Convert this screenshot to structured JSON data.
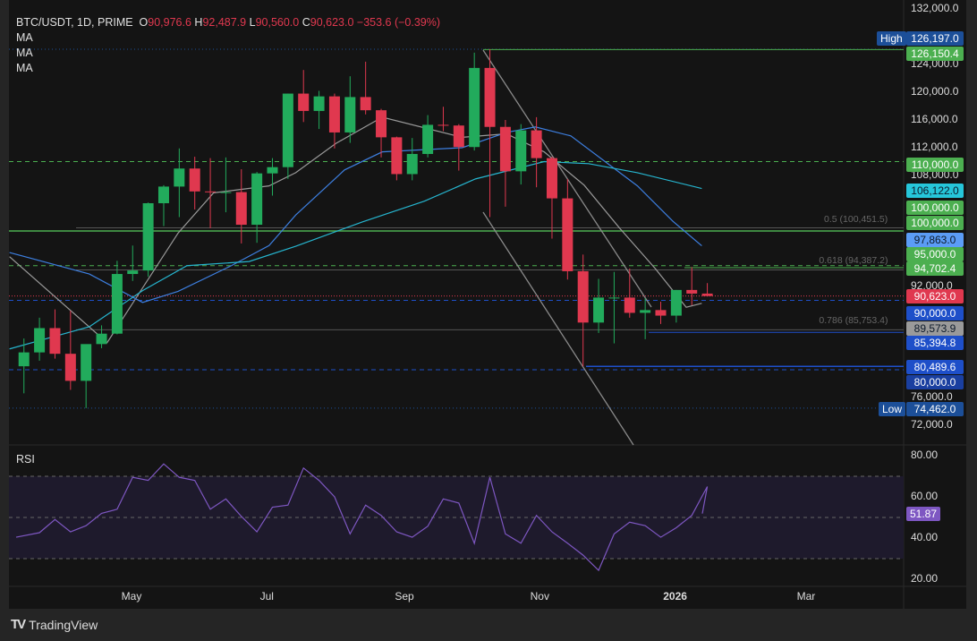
{
  "header": {
    "symbol": "BTC/USDT, 1D, PRIME",
    "o_label": "O",
    "o": "90,976.6",
    "h_label": "H",
    "h": "92,487.9",
    "l_label": "L",
    "l": "90,560.0",
    "c_label": "C",
    "c": "90,623.0",
    "change": "−353.6 (−0.39%)",
    "indicators": [
      "MA",
      "MA",
      "MA"
    ]
  },
  "colors": {
    "up": "#22ab5c",
    "down": "#e0384f",
    "ma_fast": "#9a9a9a",
    "ma_mid": "#3d7fe0",
    "ma_slow": "#26b5cf",
    "rsi": "#7e57c2",
    "green_level": "#4caf50",
    "blue_level": "#1e4fc9"
  },
  "chart_data": {
    "type": "candlestick",
    "interval_shown": "1D",
    "y_axis": {
      "range": [
        68000,
        134000
      ],
      "ticks": [
        "132,000.0",
        "124,000.0",
        "120,000.0",
        "116,000.0",
        "112,000.0",
        "108,000.0",
        "92,000.0",
        "76,000.0",
        "72,000.0"
      ],
      "tick_values": [
        132000,
        124000,
        120000,
        116000,
        112000,
        108000,
        92000,
        76000,
        72000
      ]
    },
    "x_axis": {
      "ticks": [
        "May",
        "Jul",
        "Sep",
        "Nov",
        "2026",
        "Mar"
      ],
      "tick_dates": [
        "2025-05-01",
        "2025-07-01",
        "2025-09-01",
        "2025-11-01",
        "2026-01-01",
        "2026-03-01"
      ]
    },
    "candles_columns": [
      "week",
      "open",
      "high",
      "low",
      "close"
    ],
    "candles": [
      [
        "2025-03-10",
        80500,
        84500,
        76600,
        82500
      ],
      [
        "2025-03-17",
        82500,
        87500,
        81300,
        86000
      ],
      [
        "2025-03-24",
        86000,
        88700,
        81600,
        82300
      ],
      [
        "2025-03-31",
        82300,
        88500,
        77100,
        78400
      ],
      [
        "2025-04-07",
        78400,
        83500,
        74462,
        83700
      ],
      [
        "2025-04-14",
        83700,
        86400,
        83100,
        85200
      ],
      [
        "2025-04-21",
        85200,
        95700,
        85100,
        93800
      ],
      [
        "2025-04-28",
        93800,
        97900,
        92800,
        94300
      ],
      [
        "2025-05-05",
        94300,
        104100,
        93400,
        104000
      ],
      [
        "2025-05-12",
        104000,
        106600,
        100700,
        106400
      ],
      [
        "2025-05-19",
        106400,
        111900,
        102000,
        109000
      ],
      [
        "2025-05-26",
        109000,
        110700,
        103100,
        105700
      ],
      [
        "2025-06-02",
        105700,
        110500,
        100400,
        105600
      ],
      [
        "2025-06-09",
        105600,
        110600,
        102700,
        105600
      ],
      [
        "2025-06-16",
        105600,
        108900,
        98200,
        100900
      ],
      [
        "2025-06-23",
        100900,
        108500,
        98300,
        108300
      ],
      [
        "2025-06-30",
        108300,
        110500,
        105100,
        109200
      ],
      [
        "2025-07-07",
        109200,
        119800,
        107500,
        119800
      ],
      [
        "2025-07-14",
        119800,
        123200,
        115700,
        117300
      ],
      [
        "2025-07-21",
        117300,
        120200,
        114700,
        119400
      ],
      [
        "2025-07-28",
        119400,
        119800,
        111900,
        114200
      ],
      [
        "2025-08-04",
        114200,
        122300,
        112700,
        119300
      ],
      [
        "2025-08-11",
        119300,
        124400,
        116800,
        117400
      ],
      [
        "2025-08-18",
        117400,
        117600,
        110600,
        113500
      ],
      [
        "2025-08-25",
        113500,
        113600,
        107300,
        108200
      ],
      [
        "2025-09-01",
        108200,
        113400,
        107300,
        111100
      ],
      [
        "2025-09-08",
        111100,
        116700,
        110600,
        115300
      ],
      [
        "2025-09-15",
        115300,
        117900,
        114400,
        115200
      ],
      [
        "2025-09-22",
        115200,
        115400,
        108700,
        112100
      ],
      [
        "2025-09-29",
        112100,
        125700,
        111600,
        123500
      ],
      [
        "2025-10-06",
        123500,
        126197,
        102000,
        115000
      ],
      [
        "2025-10-13",
        115000,
        116000,
        103500,
        108600
      ],
      [
        "2025-10-20",
        108600,
        115400,
        106700,
        114500
      ],
      [
        "2025-10-27",
        114500,
        116400,
        106300,
        110500
      ],
      [
        "2025-11-03",
        110500,
        110700,
        98900,
        104700
      ],
      [
        "2025-11-10",
        104700,
        107500,
        93000,
        94200
      ],
      [
        "2025-11-17",
        94200,
        96600,
        80489.6,
        86800
      ],
      [
        "2025-11-24",
        86800,
        93100,
        85300,
        90400
      ],
      [
        "2025-12-01",
        90400,
        94100,
        83800,
        90400
      ],
      [
        "2025-12-08",
        90400,
        94600,
        87500,
        88200
      ],
      [
        "2025-12-15",
        88200,
        90300,
        84400,
        88600
      ],
      [
        "2025-12-22",
        88600,
        89800,
        86600,
        87800
      ],
      [
        "2025-12-29",
        87800,
        91500,
        86800,
        91500
      ],
      [
        "2026-01-05",
        91500,
        94789,
        89300,
        90976.6
      ],
      [
        "2026-01-12",
        90976.6,
        92487.9,
        90560,
        90623
      ]
    ],
    "moving_averages": [
      {
        "name": "MA",
        "color_key": "ma_fast",
        "points": [
          [
            "2025-03-07",
            96300
          ],
          [
            "2025-04-20",
            83900
          ],
          [
            "2025-05-22",
            99700
          ],
          [
            "2025-06-07",
            105500
          ],
          [
            "2025-07-02",
            106500
          ],
          [
            "2025-07-14",
            108400
          ],
          [
            "2025-08-01",
            112600
          ],
          [
            "2025-08-22",
            116400
          ],
          [
            "2025-09-27",
            113500
          ],
          [
            "2025-10-17",
            114000
          ],
          [
            "2025-11-03",
            111400
          ],
          [
            "2025-11-21",
            106600
          ],
          [
            "2025-12-07",
            100400
          ],
          [
            "2025-12-23",
            94600
          ],
          [
            "2026-01-06",
            89000
          ],
          [
            "2026-01-13",
            89573.9
          ]
        ]
      },
      {
        "name": "MA",
        "color_key": "ma_mid",
        "points": [
          [
            "2025-03-07",
            96900
          ],
          [
            "2025-04-12",
            93800
          ],
          [
            "2025-05-06",
            89700
          ],
          [
            "2025-05-22",
            91300
          ],
          [
            "2025-06-15",
            95000
          ],
          [
            "2025-07-02",
            97900
          ],
          [
            "2025-07-14",
            102300
          ],
          [
            "2025-08-05",
            108800
          ],
          [
            "2025-08-22",
            111400
          ],
          [
            "2025-09-27",
            112000
          ],
          [
            "2025-10-17",
            114200
          ],
          [
            "2025-10-30",
            115000
          ],
          [
            "2025-11-15",
            113700
          ],
          [
            "2025-12-15",
            106500
          ],
          [
            "2025-12-31",
            101400
          ],
          [
            "2026-01-13",
            97863
          ]
        ]
      },
      {
        "name": "MA",
        "color_key": "ma_slow",
        "points": [
          [
            "2025-03-07",
            83000
          ],
          [
            "2025-04-12",
            86200
          ],
          [
            "2025-05-06",
            91400
          ],
          [
            "2025-05-26",
            95000
          ],
          [
            "2025-06-23",
            95600
          ],
          [
            "2025-07-14",
            97800
          ],
          [
            "2025-08-13",
            101300
          ],
          [
            "2025-09-10",
            104300
          ],
          [
            "2025-10-03",
            107500
          ],
          [
            "2025-11-03",
            110000
          ],
          [
            "2025-11-23",
            109700
          ],
          [
            "2025-12-15",
            108400
          ],
          [
            "2026-01-13",
            106122
          ]
        ]
      }
    ],
    "price_labels": [
      {
        "value": "126,197.0",
        "color": "#1c4f99",
        "tag": "High"
      },
      {
        "value": "126,150.4",
        "color": "#4caf50"
      },
      {
        "value": "110,000.0",
        "color": "#4caf50"
      },
      {
        "value": "106,122.0",
        "color": "#26c6da"
      },
      {
        "value": "100,000.0",
        "color": "#4caf50"
      },
      {
        "value": "100,000.0",
        "color": "#4caf50"
      },
      {
        "value": "97,863.0",
        "color": "#5b9cf6"
      },
      {
        "value": "95,000.0",
        "color": "#4caf50"
      },
      {
        "value": "94,702.4",
        "color": "#4caf50"
      },
      {
        "value": "90,623.0",
        "color": "#e0384f"
      },
      {
        "value": "90,000.0",
        "color": "#1e4fc9"
      },
      {
        "value": "89,573.9",
        "color": "#9a9a9a"
      },
      {
        "value": "85,394.8",
        "color": "#1e4fc9"
      },
      {
        "value": "80,489.6",
        "color": "#1e4fc9"
      },
      {
        "value": "80,000.0",
        "color": "#1a3fa0"
      },
      {
        "value": "74,462.0",
        "color": "#1c4f99",
        "tag": "Low"
      }
    ],
    "fib_levels": [
      {
        "label": "0.5 (100,451.5)",
        "value": 100451.5
      },
      {
        "label": "0.618 (94,387.2)",
        "value": 94387.2
      },
      {
        "label": "0.786 (85,753.4)",
        "value": 85753.4
      }
    ],
    "rsi": {
      "label": "RSI",
      "current": "51.87",
      "ticks": [
        "80.00",
        "60.00",
        "40.00",
        "20.00"
      ],
      "tick_values": [
        80,
        60,
        40,
        20
      ],
      "bands": [
        70,
        50,
        30
      ],
      "values": [
        40.4,
        42.6,
        49,
        43,
        46,
        52,
        54,
        69.5,
        68,
        76,
        69.5,
        68,
        54,
        59,
        50.5,
        43,
        55,
        56,
        74,
        68,
        60,
        42,
        56,
        51,
        43,
        40.4,
        45.7,
        59,
        57,
        37.4,
        69.5,
        42,
        37.5,
        51,
        43,
        37.5,
        31.7,
        24.3,
        42,
        47.7,
        46,
        40.4,
        45,
        51,
        65,
        51.87
      ]
    }
  },
  "branding": {
    "logo": "TradingView"
  }
}
